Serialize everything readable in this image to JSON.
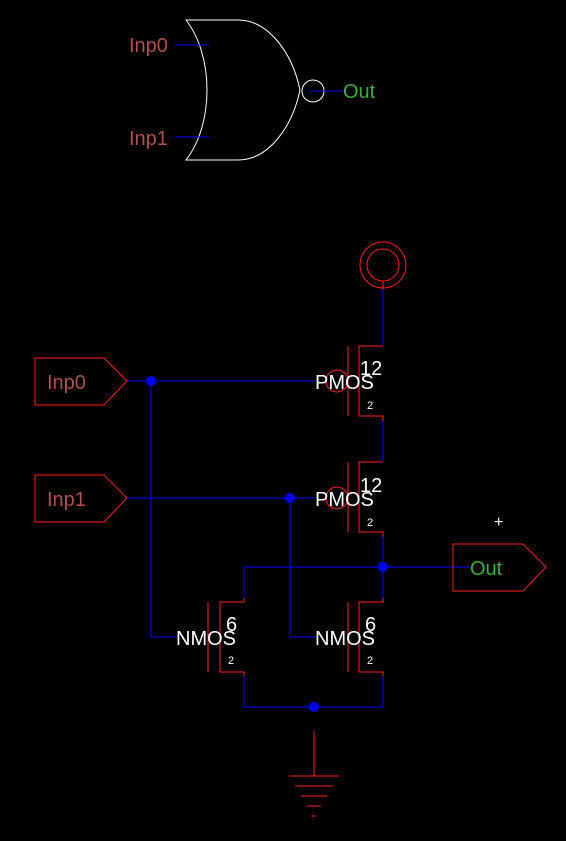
{
  "colors": {
    "background": "#000000",
    "wire": "#0000ff",
    "device": "#ff2020",
    "symbol_outline": "#ffffff",
    "input_label": "#b05050",
    "output_label": "#3cb03c",
    "device_label": "#ffffff"
  },
  "symbol": {
    "input0": "Inp0",
    "input1": "Inp1",
    "output": "Out"
  },
  "schematic": {
    "ports": {
      "in0": "Inp0",
      "in1": "Inp1",
      "out": "Out"
    },
    "transistors": {
      "pmos_top": {
        "type": "PMOS",
        "width": "12",
        "length": "2"
      },
      "pmos_bottom": {
        "type": "PMOS",
        "width": "12",
        "length": "2"
      },
      "nmos_left": {
        "type": "NMOS",
        "width": "6",
        "length": "2"
      },
      "nmos_right": {
        "type": "NMOS",
        "width": "6",
        "length": "2"
      }
    },
    "cursor_mark": "+"
  }
}
